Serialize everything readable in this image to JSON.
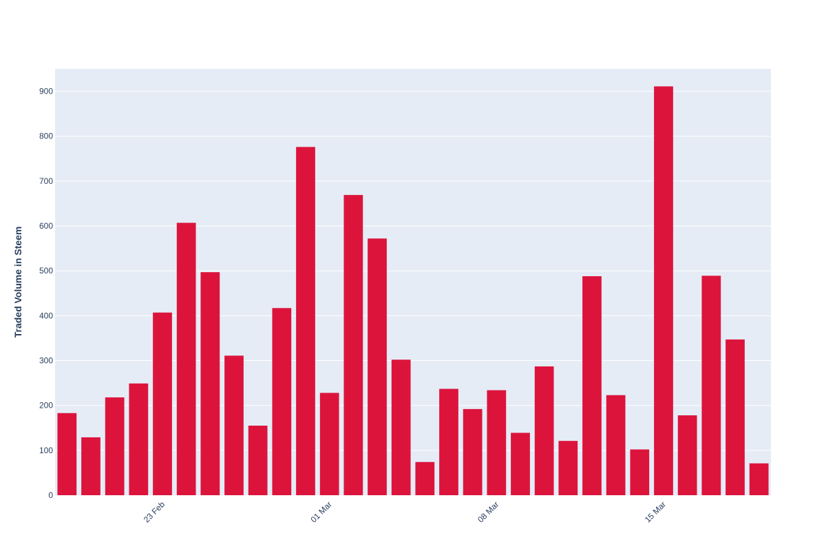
{
  "chart_data": {
    "type": "bar",
    "title": "",
    "xlabel": "",
    "ylabel": "Traded Volume in Steem",
    "ylim": [
      0,
      950
    ],
    "yticks": [
      0,
      100,
      200,
      300,
      400,
      500,
      600,
      700,
      800,
      900
    ],
    "grid": true,
    "bar_color": "#dc143c",
    "plot_bg": "#e5ecf6",
    "x_tick_labels": [
      {
        "date": "2020-02-23",
        "label": "23 Feb"
      },
      {
        "date": "2020-03-01",
        "label": "01 Mar"
      },
      {
        "date": "2020-03-08",
        "label": "08 Mar"
      },
      {
        "date": "2020-03-15",
        "label": "15 Mar"
      }
    ],
    "x": [
      "2020-02-19",
      "2020-02-20",
      "2020-02-21",
      "2020-02-22",
      "2020-02-23",
      "2020-02-24",
      "2020-02-25",
      "2020-02-26",
      "2020-02-27",
      "2020-02-28",
      "2020-02-29",
      "2020-03-01",
      "2020-03-02",
      "2020-03-03",
      "2020-03-04",
      "2020-03-05",
      "2020-03-06",
      "2020-03-07",
      "2020-03-08",
      "2020-03-09",
      "2020-03-10",
      "2020-03-11",
      "2020-03-12",
      "2020-03-13",
      "2020-03-14",
      "2020-03-15",
      "2020-03-16",
      "2020-03-17",
      "2020-03-18",
      "2020-03-19"
    ],
    "values": [
      183,
      129,
      218,
      249,
      407,
      607,
      497,
      311,
      155,
      417,
      776,
      228,
      669,
      572,
      302,
      74,
      237,
      192,
      234,
      139,
      287,
      121,
      488,
      223,
      102,
      911,
      178,
      489,
      347,
      71
    ]
  }
}
